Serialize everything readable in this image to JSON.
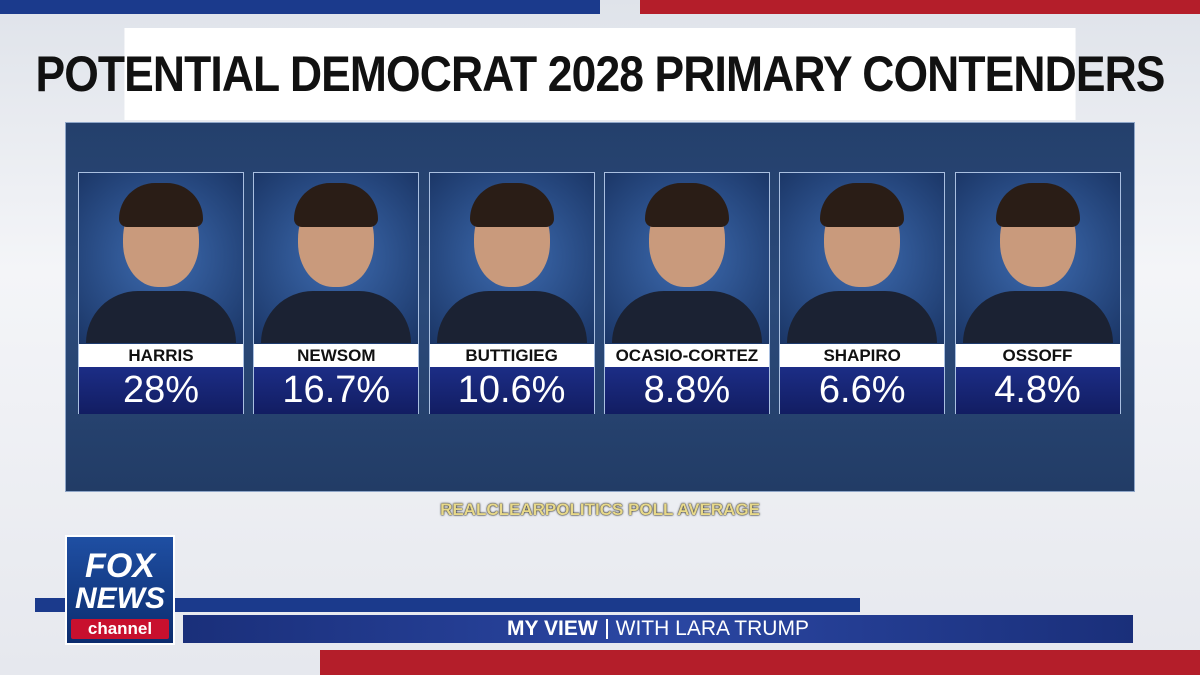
{
  "title": "POTENTIAL DEMOCRAT 2028 PRIMARY CONTENDERS",
  "candidates": [
    {
      "name": "HARRIS",
      "value": "28%"
    },
    {
      "name": "NEWSOM",
      "value": "16.7%"
    },
    {
      "name": "BUTTIGIEG",
      "value": "10.6%"
    },
    {
      "name": "OCASIO-CORTEZ",
      "value": "8.8%"
    },
    {
      "name": "SHAPIRO",
      "value": "6.6%"
    },
    {
      "name": "OSSOFF",
      "value": "4.8%"
    }
  ],
  "source": "REALCLEARPOLITICS POLL AVERAGE",
  "logo": {
    "line1": "FOX",
    "line2": "NEWS",
    "line3": "channel"
  },
  "banner": {
    "show": "MY VIEW",
    "host": "WITH LARA TRUMP"
  }
}
